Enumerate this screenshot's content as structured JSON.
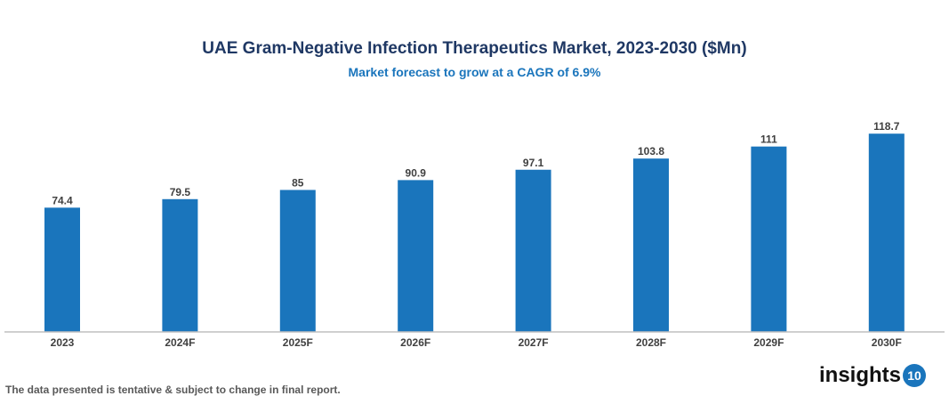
{
  "chart_data": {
    "type": "bar",
    "title": "UAE Gram-Negative Infection Therapeutics Market, 2023-2030 ($Mn)",
    "subtitle": "Market forecast to grow at a CAGR of 6.9%",
    "categories": [
      "2023",
      "2024F",
      "2025F",
      "2026F",
      "2027F",
      "2028F",
      "2029F",
      "2030F"
    ],
    "values": [
      74.4,
      79.5,
      85,
      90.9,
      97.1,
      103.8,
      111,
      118.7
    ],
    "data_labels": [
      "74.4",
      "79.5",
      "85",
      "90.9",
      "97.1",
      "103.8",
      "111",
      "118.7"
    ],
    "xlabel": "",
    "ylabel": "",
    "ylim": [
      0,
      130
    ],
    "grid": false,
    "bar_color": "#1a75bc"
  },
  "footer": {
    "note": "The data presented is tentative & subject to change in final report."
  },
  "logo": {
    "text": "insights",
    "badge": "10"
  }
}
